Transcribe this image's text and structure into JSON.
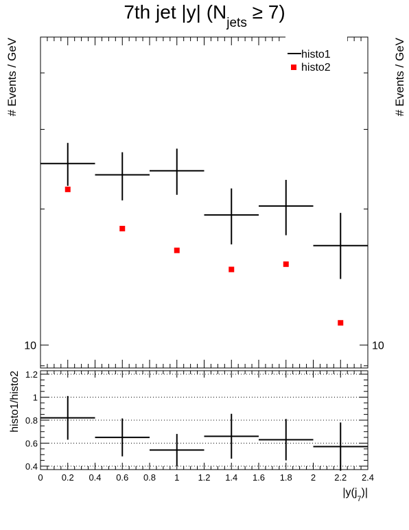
{
  "title": {
    "main": "7th jet |y| (N",
    "sub": "jets",
    "tail": " ≥ 7)"
  },
  "top_ylabel": "# Events / GeV",
  "bottom_ylabel": "histo1/histo2",
  "xlabel": {
    "main": "|y(j",
    "sub": "7",
    "tail": ")|"
  },
  "colors": {
    "histo1": "#000000",
    "histo2": "#ff0000",
    "grid": "#000000"
  },
  "chart_data": [
    {
      "type": "scatter",
      "panel": "main",
      "title": "7th jet |y| (N_jets ≥ 7)",
      "xlabel": "",
      "ylabel": "# Events / GeV",
      "log_y": true,
      "xlim": [
        0,
        2.4
      ],
      "ylim": [
        8.9,
        48
      ],
      "y_tick_labels": [
        "10"
      ],
      "legend": {
        "placement": "top-right",
        "entries": [
          "histo1",
          "histo2"
        ]
      },
      "series": [
        {
          "name": "histo1",
          "style": "crosses",
          "x_edges": [
            [
              0.0,
              0.4
            ],
            [
              0.4,
              0.8
            ],
            [
              0.8,
              1.2
            ],
            [
              1.2,
              1.6
            ],
            [
              1.6,
              2.0
            ],
            [
              2.0,
              2.4
            ]
          ],
          "x": [
            0.2,
            0.6,
            1.0,
            1.4,
            1.8,
            2.2
          ],
          "y": [
            25.2,
            23.8,
            24.3,
            19.4,
            20.3,
            16.6
          ],
          "y_err_low": [
            2.7,
            2.9,
            2.8,
            2.7,
            2.8,
            2.6
          ],
          "y_err_high": [
            2.8,
            2.9,
            2.9,
            2.8,
            2.9,
            3.0
          ]
        },
        {
          "name": "histo2",
          "style": "markers",
          "x": [
            0.2,
            0.6,
            1.0,
            1.4,
            1.8,
            2.2
          ],
          "y": [
            22.1,
            18.1,
            16.2,
            14.7,
            15.1,
            11.2
          ]
        }
      ]
    },
    {
      "type": "scatter",
      "panel": "ratio",
      "xlabel": "|y(j_7)|",
      "ylabel": "histo1/histo2",
      "xlim": [
        0,
        2.4
      ],
      "ylim": [
        0.37,
        1.23
      ],
      "grid": "horizontal dotted",
      "x_ticks": [
        "0",
        "0.2",
        "0.4",
        "0.6",
        "0.8",
        "1",
        "1.2",
        "1.4",
        "1.6",
        "1.8",
        "2",
        "2.2",
        "2.4"
      ],
      "y_ticks": [
        "0.4",
        "0.6",
        "0.8",
        "1",
        "1.2"
      ],
      "series": [
        {
          "style": "crosses",
          "x_edges": [
            [
              0.0,
              0.4
            ],
            [
              0.4,
              0.8
            ],
            [
              0.8,
              1.2
            ],
            [
              1.2,
              1.6
            ],
            [
              1.6,
              2.0
            ],
            [
              2.0,
              2.4
            ]
          ],
          "x": [
            0.2,
            0.6,
            1.0,
            1.4,
            1.8,
            2.2
          ],
          "y": [
            0.82,
            0.65,
            0.54,
            0.66,
            0.63,
            0.57
          ],
          "y_err": [
            0.19,
            0.165,
            0.14,
            0.195,
            0.18,
            0.21
          ]
        }
      ]
    }
  ]
}
